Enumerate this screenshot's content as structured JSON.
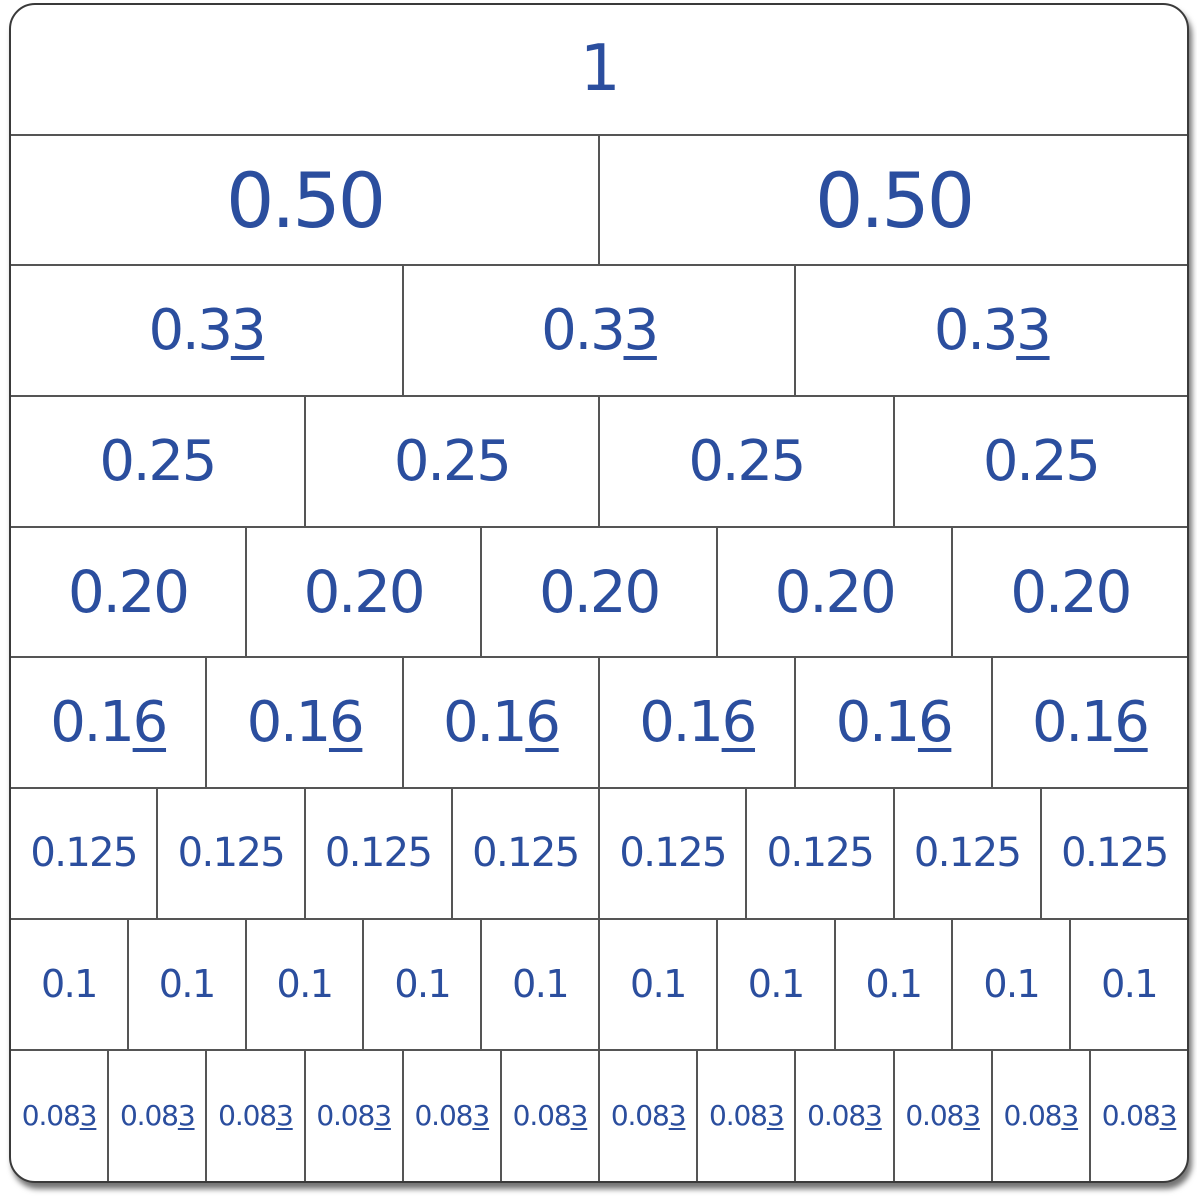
{
  "colors": {
    "text": "#2b4e9e",
    "border": "#555555"
  },
  "rows": [
    {
      "count": 1,
      "prefix": "1",
      "repeat": ""
    },
    {
      "count": 2,
      "prefix": "0.50",
      "repeat": ""
    },
    {
      "count": 3,
      "prefix": "0.3",
      "repeat": "3"
    },
    {
      "count": 4,
      "prefix": "0.25",
      "repeat": ""
    },
    {
      "count": 5,
      "prefix": "0.20",
      "repeat": ""
    },
    {
      "count": 6,
      "prefix": "0.1",
      "repeat": "6"
    },
    {
      "count": 8,
      "prefix": "0.125",
      "repeat": ""
    },
    {
      "count": 10,
      "prefix": "0.1",
      "repeat": ""
    },
    {
      "count": 12,
      "prefix": "0.08",
      "repeat": "3"
    }
  ]
}
